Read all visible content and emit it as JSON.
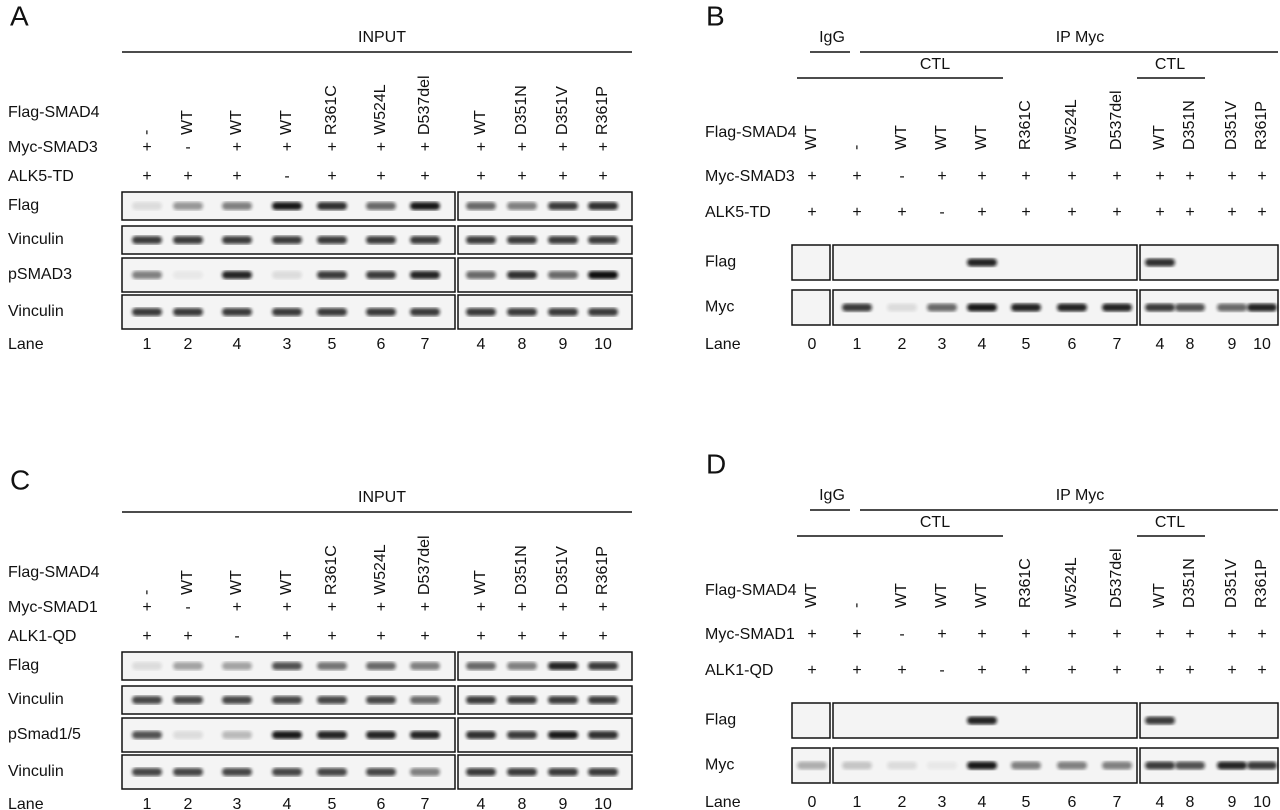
{
  "panels": [
    {
      "letter": "A",
      "header": "INPUT",
      "rows": [
        {
          "label": "Flag-SMAD4",
          "values": [
            "-",
            "WT",
            "WT",
            "WT",
            "R361C",
            "W524L",
            "D537del",
            "WT",
            "D351N",
            "D351V",
            "R361P"
          ]
        },
        {
          "label": "Myc-SMAD3",
          "values": [
            "+",
            "-",
            "+",
            "+",
            "+",
            "+",
            "+",
            "+",
            "+",
            "+",
            "+"
          ]
        },
        {
          "label": "ALK5-TD",
          "values": [
            "+",
            "+",
            "+",
            "-",
            "+",
            "+",
            "+",
            "+",
            "+",
            "+",
            "+"
          ]
        }
      ],
      "blots": [
        "Flag",
        "Vinculin",
        "pSMAD3",
        "Vinculin"
      ],
      "lane_label": "Lane",
      "lanes": [
        "1",
        "2",
        "4",
        "3",
        "5",
        "6",
        "7",
        "4",
        "8",
        "9",
        "10"
      ]
    },
    {
      "letter": "B",
      "header": {
        "igg": "IgG",
        "ip": "IP Myc",
        "ctl_1": "CTL",
        "ctl_2": "CTL"
      },
      "rows": [
        {
          "label": "Flag-SMAD4",
          "values": [
            "WT",
            "-",
            "WT",
            "WT",
            "WT",
            "R361C",
            "W524L",
            "D537del",
            "WT",
            "D351N",
            "D351V",
            "R361P"
          ]
        },
        {
          "label": "Myc-SMAD3",
          "values": [
            "+",
            "+",
            "-",
            "+",
            "+",
            "+",
            "+",
            "+",
            "+",
            "+",
            "+",
            "+"
          ]
        },
        {
          "label": "ALK5-TD",
          "values": [
            "+",
            "+",
            "+",
            "-",
            "+",
            "+",
            "+",
            "+",
            "+",
            "+",
            "+",
            "+"
          ]
        }
      ],
      "blots": [
        "Flag",
        "Myc"
      ],
      "lane_label": "Lane",
      "lanes": [
        "0",
        "1",
        "2",
        "3",
        "4",
        "5",
        "6",
        "7",
        "4",
        "8",
        "9",
        "10"
      ]
    },
    {
      "letter": "C",
      "header": "INPUT",
      "rows": [
        {
          "label": "Flag-SMAD4",
          "values": [
            "-",
            "WT",
            "WT",
            "WT",
            "R361C",
            "W524L",
            "D537del",
            "WT",
            "D351N",
            "D351V",
            "R361P"
          ]
        },
        {
          "label": "Myc-SMAD1",
          "values": [
            "+",
            "-",
            "+",
            "+",
            "+",
            "+",
            "+",
            "+",
            "+",
            "+",
            "+"
          ]
        },
        {
          "label": "ALK1-QD",
          "values": [
            "+",
            "+",
            "-",
            "+",
            "+",
            "+",
            "+",
            "+",
            "+",
            "+",
            "+"
          ]
        }
      ],
      "blots": [
        "Flag",
        "Vinculin",
        "pSmad1/5",
        "Vinculin"
      ],
      "lane_label": "Lane",
      "lanes": [
        "1",
        "2",
        "3",
        "4",
        "5",
        "6",
        "7",
        "4",
        "8",
        "9",
        "10"
      ]
    },
    {
      "letter": "D",
      "header": {
        "igg": "IgG",
        "ip": "IP Myc",
        "ctl_1": "CTL",
        "ctl_2": "CTL"
      },
      "rows": [
        {
          "label": "Flag-SMAD4",
          "values": [
            "WT",
            "-",
            "WT",
            "WT",
            "WT",
            "R361C",
            "W524L",
            "D537del",
            "WT",
            "D351N",
            "D351V",
            "R361P"
          ]
        },
        {
          "label": "Myc-SMAD1",
          "values": [
            "+",
            "+",
            "-",
            "+",
            "+",
            "+",
            "+",
            "+",
            "+",
            "+",
            "+",
            "+"
          ]
        },
        {
          "label": "ALK1-QD",
          "values": [
            "+",
            "+",
            "+",
            "-",
            "+",
            "+",
            "+",
            "+",
            "+",
            "+",
            "+",
            "+"
          ]
        }
      ],
      "blots": [
        "Flag",
        "Myc"
      ],
      "lane_label": "Lane",
      "lanes": [
        "0",
        "1",
        "2",
        "3",
        "4",
        "5",
        "6",
        "7",
        "4",
        "8",
        "9",
        "10"
      ]
    }
  ]
}
